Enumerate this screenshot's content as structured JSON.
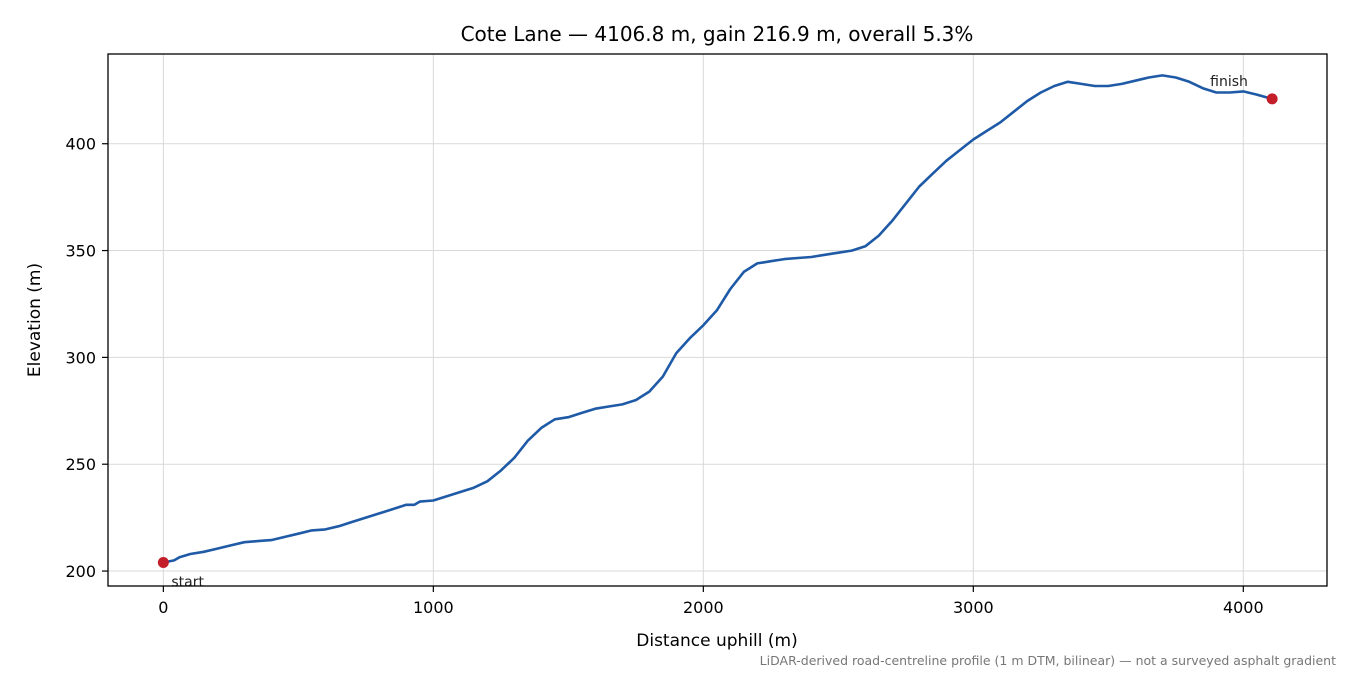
{
  "chart_data": {
    "type": "line",
    "title": "Cote Lane — 4106.8 m, gain 216.9 m, overall 5.3%",
    "xlabel": "Distance uphill (m)",
    "ylabel": "Elevation (m)",
    "footnote": "LiDAR-derived road-centreline profile (1 m DTM, bilinear) — not a surveyed asphalt gradient",
    "xlim": [
      -205,
      4310
    ],
    "ylim": [
      193,
      442
    ],
    "x_ticks": [
      0,
      1000,
      2000,
      3000,
      4000
    ],
    "y_ticks": [
      200,
      250,
      300,
      350,
      400
    ],
    "grid": true,
    "line_color": "#1f5aa6",
    "marker_color": "#c41e2a",
    "series": [
      {
        "x": [
          0,
          40,
          60,
          100,
          150,
          200,
          250,
          300,
          350,
          400,
          450,
          500,
          550,
          600,
          650,
          700,
          750,
          800,
          850,
          900,
          930,
          950,
          1000,
          1050,
          1100,
          1150,
          1200,
          1250,
          1300,
          1350,
          1400,
          1450,
          1500,
          1550,
          1600,
          1650,
          1700,
          1750,
          1800,
          1850,
          1900,
          1950,
          2000,
          2050,
          2100,
          2150,
          2200,
          2250,
          2300,
          2350,
          2400,
          2450,
          2500,
          2550,
          2600,
          2650,
          2700,
          2750,
          2800,
          2850,
          2900,
          2950,
          3000,
          3050,
          3100,
          3150,
          3200,
          3250,
          3300,
          3350,
          3400,
          3450,
          3500,
          3550,
          3600,
          3650,
          3700,
          3750,
          3800,
          3850,
          3900,
          3950,
          4000,
          4050,
          4106.8
        ],
        "y": [
          204,
          205,
          206.5,
          208,
          209,
          210.5,
          212,
          213.5,
          214,
          214.5,
          216,
          217.5,
          219,
          219.5,
          221,
          223,
          225,
          227,
          229,
          231,
          231,
          232.5,
          233,
          235,
          237,
          239,
          242,
          247,
          253,
          261,
          267,
          271,
          272,
          274,
          276,
          277,
          278,
          280,
          284,
          291,
          302,
          309,
          315,
          322,
          332,
          340,
          344,
          345,
          346,
          346.5,
          347,
          348,
          349,
          350,
          352,
          357,
          364,
          372,
          380,
          386,
          392,
          397,
          402,
          406,
          410,
          415,
          420,
          424,
          427,
          429,
          428,
          427,
          427,
          428,
          429.5,
          431,
          432,
          431,
          429,
          426,
          424,
          424,
          424.5,
          423,
          421
        ]
      }
    ],
    "annotations": [
      {
        "text": "start",
        "x": 0,
        "y": 204
      },
      {
        "text": "finish",
        "x": 4106.8,
        "y": 421
      }
    ]
  }
}
